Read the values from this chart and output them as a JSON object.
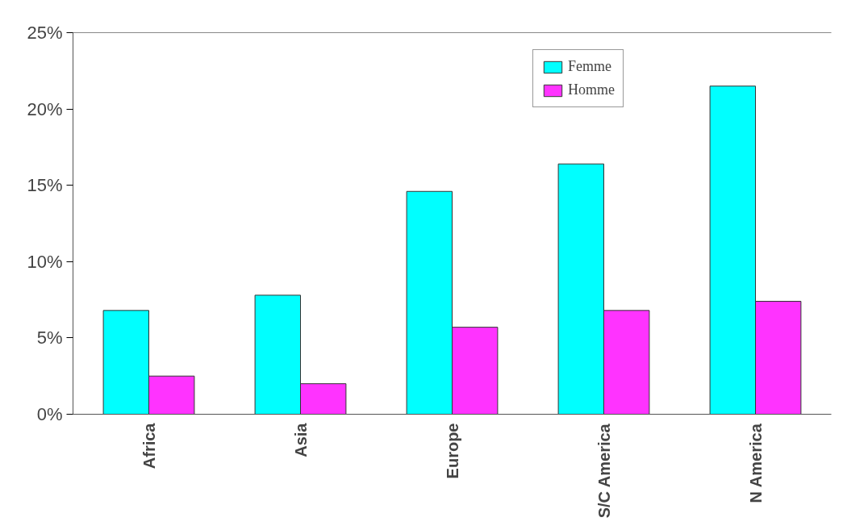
{
  "chart_data": {
    "type": "bar",
    "categories": [
      "Africa",
      "Asia",
      "Europe",
      "S/C America",
      "N America"
    ],
    "series": [
      {
        "name": "Femme",
        "color": "#00ffff",
        "values": [
          6.8,
          7.8,
          14.6,
          16.4,
          21.5
        ]
      },
      {
        "name": "Homme",
        "color": "#ff33ff",
        "values": [
          2.5,
          2.0,
          5.7,
          6.8,
          7.4
        ]
      }
    ],
    "ylim": [
      0,
      25
    ],
    "yticks": [
      {
        "value": 0,
        "label": "0%"
      },
      {
        "value": 5,
        "label": "5%"
      },
      {
        "value": 10,
        "label": "10%"
      },
      {
        "value": 15,
        "label": "15%"
      },
      {
        "value": 20,
        "label": "20%"
      },
      {
        "value": 25,
        "label": "25%"
      }
    ],
    "grid": false,
    "legend": "top right"
  }
}
